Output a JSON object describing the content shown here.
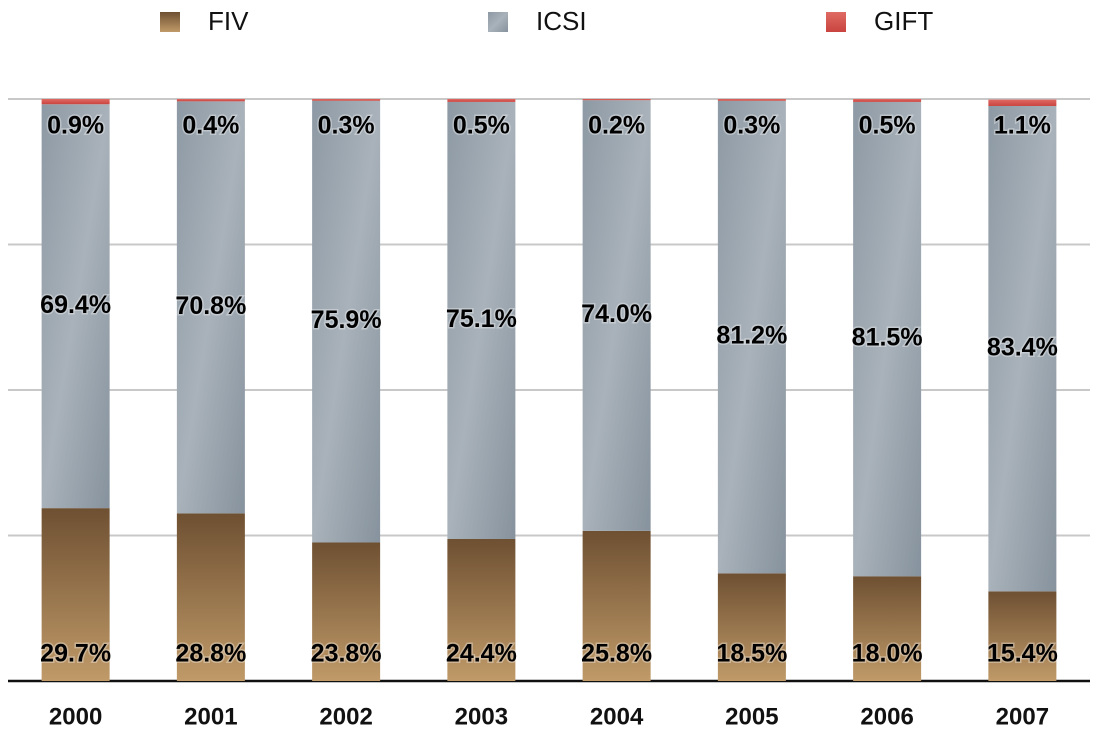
{
  "chart_data": {
    "type": "stacked_bar",
    "categories": [
      "2000",
      "2001",
      "2002",
      "2003",
      "2004",
      "2005",
      "2006",
      "2007"
    ],
    "series": [
      {
        "name": "FIV",
        "color": "#8a6a45",
        "values": [
          29.7,
          28.8,
          23.8,
          24.4,
          25.8,
          18.5,
          18.0,
          15.4
        ],
        "value_labels": [
          "29.7%",
          "28.8%",
          "23.8%",
          "24.4%",
          "25.8%",
          "18.5%",
          "18.0%",
          "15.4%"
        ]
      },
      {
        "name": "ICSI",
        "color": "#8e9ba6",
        "values": [
          69.4,
          70.8,
          75.9,
          75.1,
          74.0,
          81.2,
          81.5,
          83.4
        ],
        "value_labels": [
          "69.4%",
          "70.8%",
          "75.9%",
          "75.1%",
          "74.0%",
          "81.2%",
          "81.5%",
          "83.4%"
        ]
      },
      {
        "name": "GIFT",
        "color": "#d9534f",
        "values": [
          0.9,
          0.4,
          0.3,
          0.5,
          0.2,
          0.3,
          0.5,
          1.1
        ],
        "value_labels": [
          "0.9%",
          "0.4%",
          "0.3%",
          "0.5%",
          "0.2%",
          "0.3%",
          "0.5%",
          "1.1%"
        ]
      }
    ],
    "ylim": [
      0,
      100
    ],
    "yticks": [
      0,
      25,
      50,
      75,
      100
    ],
    "grid": true
  }
}
